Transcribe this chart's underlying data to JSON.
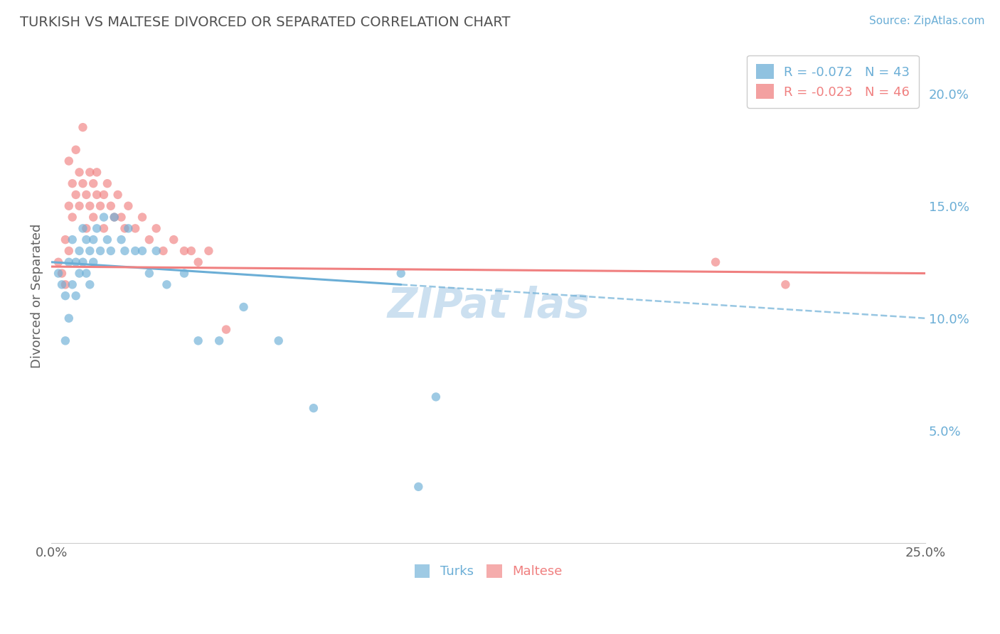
{
  "title": "TURKISH VS MALTESE DIVORCED OR SEPARATED CORRELATION CHART",
  "source": "Source: ZipAtlas.com",
  "ylabel": "Divorced or Separated",
  "xlim": [
    0.0,
    0.25
  ],
  "ylim": [
    0.0,
    0.22
  ],
  "turks_color": "#6baed6",
  "maltese_color": "#f08080",
  "grid_color": "#d8d8d8",
  "background_color": "#ffffff",
  "title_color": "#505050",
  "source_color": "#6baed6",
  "watermark_color": "#cce0f0",
  "legend_r1": "R = -0.072   N = 43",
  "legend_r2": "R = -0.023   N = 46",
  "turks_x": [
    0.002,
    0.003,
    0.004,
    0.004,
    0.005,
    0.005,
    0.006,
    0.006,
    0.007,
    0.007,
    0.008,
    0.008,
    0.009,
    0.009,
    0.01,
    0.01,
    0.011,
    0.011,
    0.012,
    0.012,
    0.013,
    0.014,
    0.015,
    0.016,
    0.017,
    0.018,
    0.02,
    0.021,
    0.022,
    0.024,
    0.026,
    0.028,
    0.03,
    0.033,
    0.038,
    0.042,
    0.048,
    0.055,
    0.065,
    0.075,
    0.1,
    0.11,
    0.105
  ],
  "turks_y": [
    0.12,
    0.115,
    0.11,
    0.09,
    0.125,
    0.1,
    0.135,
    0.115,
    0.125,
    0.11,
    0.13,
    0.12,
    0.14,
    0.125,
    0.135,
    0.12,
    0.13,
    0.115,
    0.135,
    0.125,
    0.14,
    0.13,
    0.145,
    0.135,
    0.13,
    0.145,
    0.135,
    0.13,
    0.14,
    0.13,
    0.13,
    0.12,
    0.13,
    0.115,
    0.12,
    0.09,
    0.09,
    0.105,
    0.09,
    0.06,
    0.12,
    0.065,
    0.025
  ],
  "maltese_x": [
    0.002,
    0.003,
    0.004,
    0.004,
    0.005,
    0.005,
    0.005,
    0.006,
    0.006,
    0.007,
    0.007,
    0.008,
    0.008,
    0.009,
    0.009,
    0.01,
    0.01,
    0.011,
    0.011,
    0.012,
    0.012,
    0.013,
    0.013,
    0.014,
    0.015,
    0.015,
    0.016,
    0.017,
    0.018,
    0.019,
    0.02,
    0.021,
    0.022,
    0.024,
    0.026,
    0.028,
    0.03,
    0.032,
    0.035,
    0.038,
    0.04,
    0.042,
    0.045,
    0.05,
    0.19,
    0.21
  ],
  "maltese_y": [
    0.125,
    0.12,
    0.135,
    0.115,
    0.17,
    0.15,
    0.13,
    0.16,
    0.145,
    0.175,
    0.155,
    0.165,
    0.15,
    0.185,
    0.16,
    0.155,
    0.14,
    0.165,
    0.15,
    0.16,
    0.145,
    0.155,
    0.165,
    0.15,
    0.155,
    0.14,
    0.16,
    0.15,
    0.145,
    0.155,
    0.145,
    0.14,
    0.15,
    0.14,
    0.145,
    0.135,
    0.14,
    0.13,
    0.135,
    0.13,
    0.13,
    0.125,
    0.13,
    0.095,
    0.125,
    0.115
  ],
  "line_turks_x0": 0.0,
  "line_turks_y0": 0.125,
  "line_turks_x1": 0.1,
  "line_turks_y1": 0.115,
  "line_turks_dash_x0": 0.1,
  "line_turks_dash_y0": 0.115,
  "line_turks_dash_x1": 0.25,
  "line_turks_dash_y1": 0.1,
  "line_maltese_x0": 0.0,
  "line_maltese_y0": 0.123,
  "line_maltese_x1": 0.25,
  "line_maltese_y1": 0.12
}
